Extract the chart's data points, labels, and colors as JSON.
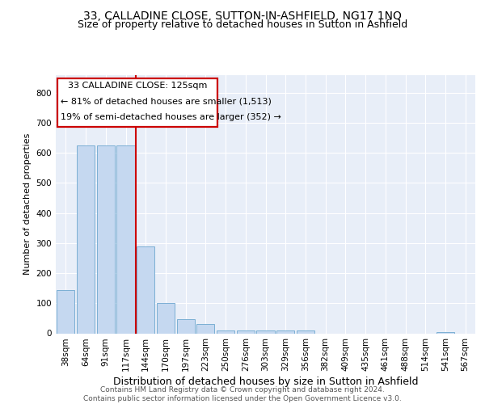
{
  "title": "33, CALLADINE CLOSE, SUTTON-IN-ASHFIELD, NG17 1NQ",
  "subtitle": "Size of property relative to detached houses in Sutton in Ashfield",
  "xlabel": "Distribution of detached houses by size in Sutton in Ashfield",
  "ylabel": "Number of detached properties",
  "footer_line1": "Contains HM Land Registry data © Crown copyright and database right 2024.",
  "footer_line2": "Contains public sector information licensed under the Open Government Licence v3.0.",
  "annotation_title": "33 CALLADINE CLOSE: 125sqm",
  "annotation_line1": "← 81% of detached houses are smaller (1,513)",
  "annotation_line2": "19% of semi-detached houses are larger (352) →",
  "bar_color": "#c5d8f0",
  "bar_edge_color": "#7bafd4",
  "vline_color": "#cc0000",
  "annotation_edge_color": "#cc0000",
  "background_color": "#e8eef8",
  "grid_color": "#ffffff",
  "categories": [
    "38sqm",
    "64sqm",
    "91sqm",
    "117sqm",
    "144sqm",
    "170sqm",
    "197sqm",
    "223sqm",
    "250sqm",
    "276sqm",
    "303sqm",
    "329sqm",
    "356sqm",
    "382sqm",
    "409sqm",
    "435sqm",
    "461sqm",
    "488sqm",
    "514sqm",
    "541sqm",
    "567sqm"
  ],
  "values": [
    145,
    625,
    625,
    625,
    290,
    100,
    47,
    32,
    10,
    10,
    10,
    10,
    10,
    0,
    0,
    0,
    0,
    0,
    0,
    5,
    0
  ],
  "ylim": [
    0,
    860
  ],
  "yticks": [
    0,
    100,
    200,
    300,
    400,
    500,
    600,
    700,
    800
  ],
  "vline_x": 3.5,
  "title_fontsize": 10,
  "subtitle_fontsize": 9,
  "xlabel_fontsize": 9,
  "ylabel_fontsize": 8,
  "tick_fontsize": 7.5,
  "annotation_fontsize": 8,
  "footer_fontsize": 6.5
}
